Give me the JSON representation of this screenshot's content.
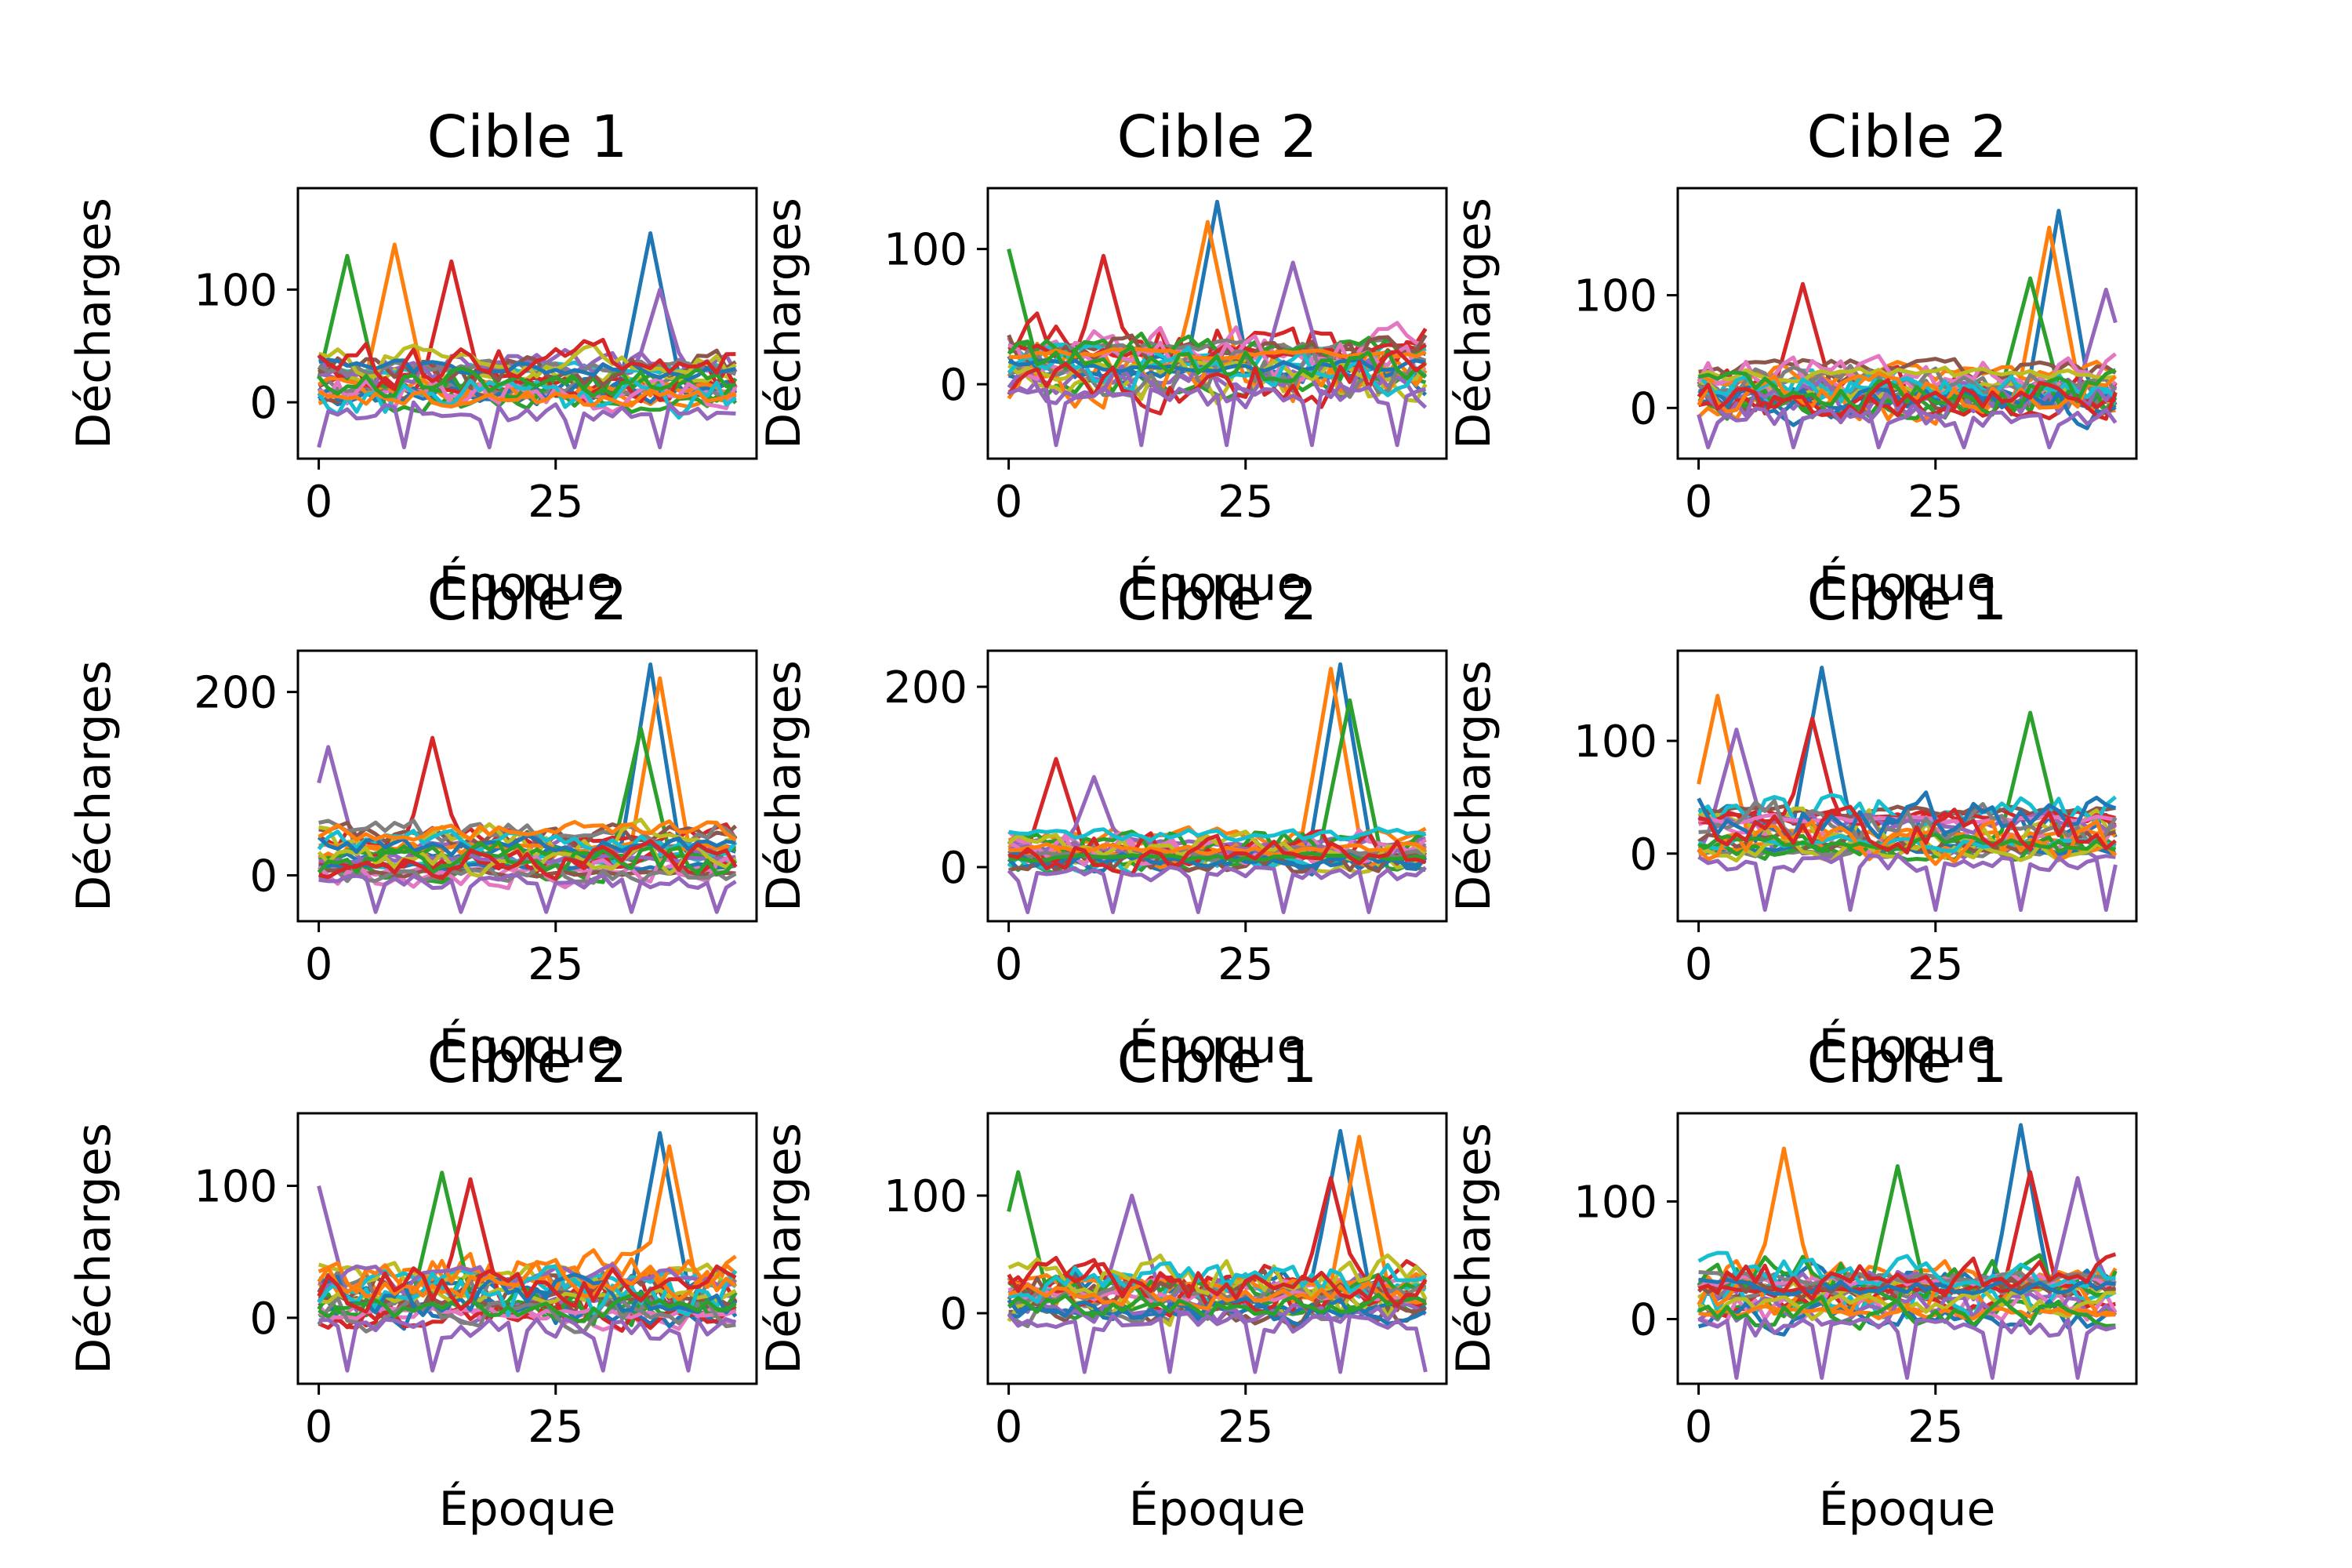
{
  "chart_data": [
    {
      "type": "line",
      "title": "Cible 1",
      "xlabel": "Époque",
      "ylabel": "Décharges",
      "x_range": [
        0,
        44
      ],
      "ylim": [
        -50,
        190
      ],
      "xticks": [
        0,
        25
      ],
      "yticks": [
        0,
        100
      ],
      "peak_values": [
        150,
        140,
        130,
        125,
        100
      ],
      "peak_epochs": [
        35,
        8,
        3,
        14,
        36
      ],
      "floor_min": -40,
      "series_count": 25
    },
    {
      "type": "line",
      "title": "Cible 2",
      "xlabel": "Époque",
      "ylabel": "Décharges",
      "x_range": [
        0,
        44
      ],
      "ylim": [
        -55,
        145
      ],
      "xticks": [
        0,
        25
      ],
      "yticks": [
        0,
        100
      ],
      "peak_values": [
        135,
        120,
        100,
        95,
        90
      ],
      "peak_epochs": [
        22,
        21,
        0,
        10,
        30
      ],
      "floor_min": -45,
      "series_count": 25
    },
    {
      "type": "line",
      "title": "Cible 2",
      "xlabel": "Époque",
      "ylabel": "Décharges",
      "x_range": [
        0,
        44
      ],
      "ylim": [
        -45,
        195
      ],
      "xticks": [
        0,
        25
      ],
      "yticks": [
        0,
        100
      ],
      "peak_values": [
        175,
        160,
        115,
        110,
        105
      ],
      "peak_epochs": [
        38,
        37,
        35,
        11,
        43
      ],
      "floor_min": -35,
      "series_count": 25
    },
    {
      "type": "line",
      "title": "Cible 2",
      "xlabel": "Époque",
      "ylabel": "Décharges",
      "x_range": [
        0,
        44
      ],
      "ylim": [
        -50,
        245
      ],
      "xticks": [
        0,
        25
      ],
      "yticks": [
        0,
        200
      ],
      "peak_values": [
        230,
        215,
        160,
        150,
        140
      ],
      "peak_epochs": [
        35,
        36,
        34,
        12,
        1
      ],
      "floor_min": -40,
      "series_count": 25
    },
    {
      "type": "line",
      "title": "Cible 2",
      "xlabel": "Époque",
      "ylabel": "Décharges",
      "x_range": [
        0,
        44
      ],
      "ylim": [
        -60,
        240
      ],
      "xticks": [
        0,
        25
      ],
      "yticks": [
        0,
        200
      ],
      "peak_values": [
        225,
        220,
        185,
        120,
        100
      ],
      "peak_epochs": [
        35,
        34,
        36,
        5,
        9
      ],
      "floor_min": -50,
      "series_count": 25
    },
    {
      "type": "line",
      "title": "Cible 1",
      "xlabel": "Époque",
      "ylabel": "Décharges",
      "x_range": [
        0,
        44
      ],
      "ylim": [
        -60,
        180
      ],
      "xticks": [
        0,
        25
      ],
      "yticks": [
        0,
        100
      ],
      "peak_values": [
        165,
        140,
        125,
        120,
        110
      ],
      "peak_epochs": [
        13,
        2,
        35,
        12,
        4
      ],
      "floor_min": -50,
      "series_count": 25
    },
    {
      "type": "line",
      "title": "Cible 2",
      "xlabel": "Époque",
      "ylabel": "Décharges",
      "x_range": [
        0,
        44
      ],
      "ylim": [
        -50,
        155
      ],
      "xticks": [
        0,
        25
      ],
      "yticks": [
        0,
        100
      ],
      "peak_values": [
        140,
        130,
        110,
        105,
        100
      ],
      "peak_epochs": [
        36,
        37,
        13,
        16,
        0
      ],
      "floor_min": -40,
      "series_count": 25
    },
    {
      "type": "line",
      "title": "Cible 1",
      "xlabel": "Époque",
      "ylabel": "Décharges",
      "x_range": [
        0,
        44
      ],
      "ylim": [
        -60,
        170
      ],
      "xticks": [
        0,
        25
      ],
      "yticks": [
        0,
        100
      ],
      "peak_values": [
        155,
        150,
        120,
        115,
        100
      ],
      "peak_epochs": [
        35,
        37,
        1,
        34,
        13
      ],
      "floor_min": -50,
      "series_count": 25
    },
    {
      "type": "line",
      "title": "Cible 1",
      "xlabel": "Époque",
      "ylabel": "Décharges",
      "x_range": [
        0,
        44
      ],
      "ylim": [
        -55,
        175
      ],
      "xticks": [
        0,
        25
      ],
      "yticks": [
        0,
        100
      ],
      "peak_values": [
        165,
        145,
        130,
        125,
        120
      ],
      "peak_epochs": [
        34,
        9,
        21,
        35,
        40
      ],
      "floor_min": -50,
      "series_count": 25
    }
  ],
  "colors": [
    "#1f77b4",
    "#ff7f0e",
    "#2ca02c",
    "#d62728",
    "#9467bd",
    "#8c564b",
    "#e377c2",
    "#7f7f7f",
    "#bcbd22",
    "#17becf"
  ]
}
